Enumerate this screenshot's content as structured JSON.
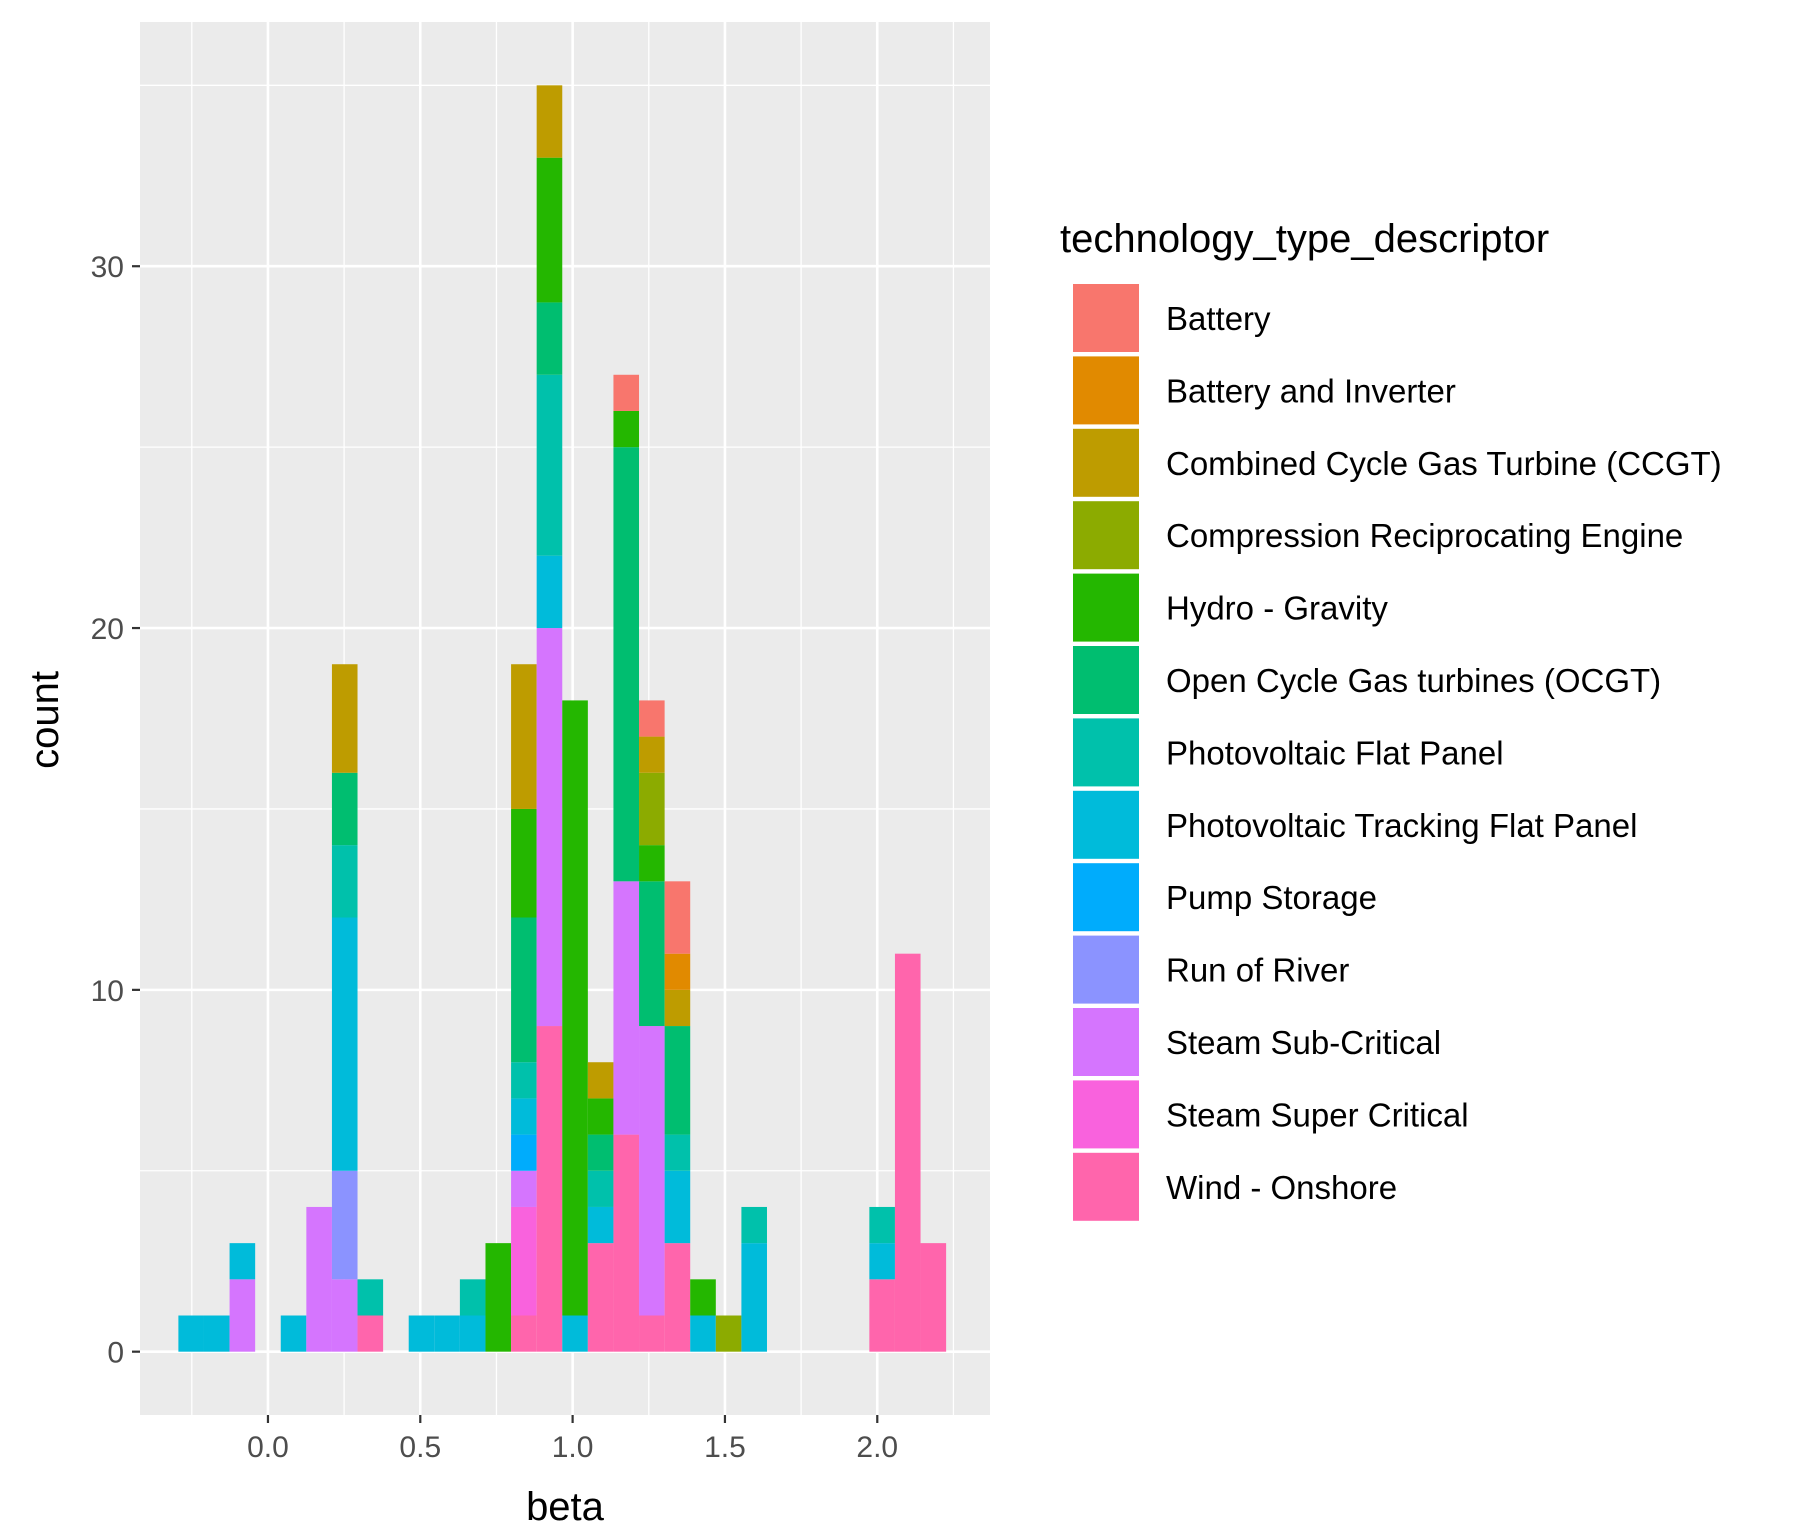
{
  "chart_data": {
    "type": "bar",
    "subtype": "stacked-histogram",
    "xlabel": "beta",
    "ylabel": "count",
    "xlim": [
      -0.42,
      2.37
    ],
    "ylim": [
      -1.75,
      36.75
    ],
    "bin_width": 0.084,
    "x_ticks": [
      0.0,
      0.5,
      1.0,
      1.5,
      2.0
    ],
    "x_tick_labels": [
      "0.0",
      "0.5",
      "1.0",
      "1.5",
      "2.0"
    ],
    "y_ticks": [
      0,
      10,
      20,
      30
    ],
    "y_tick_labels": [
      "0",
      "10",
      "20",
      "30"
    ],
    "grid": true,
    "legend": {
      "title": "technology_type_descriptor",
      "placement": "right",
      "entries": [
        {
          "name": "Battery",
          "color": "#F8766D"
        },
        {
          "name": "Battery and Inverter",
          "color": "#E18A00"
        },
        {
          "name": "Combined Cycle Gas Turbine (CCGT)",
          "color": "#BE9C00"
        },
        {
          "name": "Compression Reciprocating Engine",
          "color": "#8CAB00"
        },
        {
          "name": "Hydro - Gravity",
          "color": "#24B700"
        },
        {
          "name": "Open Cycle Gas turbines (OCGT)",
          "color": "#00BE70"
        },
        {
          "name": "Photovoltaic Flat Panel",
          "color": "#00C1AB"
        },
        {
          "name": "Photovoltaic Tracking  Flat Panel",
          "color": "#00BBDA"
        },
        {
          "name": "Pump Storage",
          "color": "#00ACFC"
        },
        {
          "name": "Run of River",
          "color": "#8B93FF"
        },
        {
          "name": "Steam Sub-Critical",
          "color": "#D575FE"
        },
        {
          "name": "Steam Super Critical",
          "color": "#F962DD"
        },
        {
          "name": "Wind - Onshore",
          "color": "#FF65AC"
        }
      ]
    },
    "bins": [
      {
        "x": -0.252,
        "counts": [
          0,
          0,
          0,
          0,
          0,
          0,
          0,
          1,
          0,
          0,
          0,
          0,
          0
        ]
      },
      {
        "x": -0.168,
        "counts": [
          0,
          0,
          0,
          0,
          0,
          0,
          0,
          1,
          0,
          0,
          0,
          0,
          0
        ]
      },
      {
        "x": -0.084,
        "counts": [
          0,
          0,
          0,
          0,
          0,
          0,
          0,
          1,
          0,
          0,
          2,
          0,
          0
        ]
      },
      {
        "x": 0.084,
        "counts": [
          0,
          0,
          0,
          0,
          0,
          0,
          0,
          1,
          0,
          0,
          0,
          0,
          0
        ]
      },
      {
        "x": 0.168,
        "counts": [
          0,
          0,
          0,
          0,
          0,
          0,
          0,
          0,
          0,
          0,
          4,
          0,
          0
        ]
      },
      {
        "x": 0.252,
        "counts": [
          0,
          0,
          3,
          0,
          0,
          2,
          2,
          7,
          0,
          3,
          2,
          0,
          0
        ]
      },
      {
        "x": 0.336,
        "counts": [
          0,
          0,
          0,
          0,
          0,
          0,
          1,
          0,
          0,
          0,
          0,
          0,
          1
        ]
      },
      {
        "x": 0.504,
        "counts": [
          0,
          0,
          0,
          0,
          0,
          0,
          0,
          1,
          0,
          0,
          0,
          0,
          0
        ]
      },
      {
        "x": 0.588,
        "counts": [
          0,
          0,
          0,
          0,
          0,
          0,
          0,
          1,
          0,
          0,
          0,
          0,
          0
        ]
      },
      {
        "x": 0.672,
        "counts": [
          0,
          0,
          0,
          0,
          0,
          0,
          1,
          1,
          0,
          0,
          0,
          0,
          0
        ]
      },
      {
        "x": 0.756,
        "counts": [
          0,
          0,
          0,
          0,
          3,
          0,
          0,
          0,
          0,
          0,
          0,
          0,
          0
        ]
      },
      {
        "x": 0.84,
        "counts": [
          0,
          0,
          4,
          0,
          3,
          4,
          1,
          1,
          1,
          0,
          1,
          3,
          1
        ]
      },
      {
        "x": 0.924,
        "counts": [
          0,
          0,
          2,
          0,
          4,
          2,
          5,
          2,
          0,
          0,
          11,
          0,
          9
        ]
      },
      {
        "x": 1.008,
        "counts": [
          0,
          0,
          0,
          0,
          17,
          0,
          0,
          1,
          0,
          0,
          0,
          0,
          0
        ]
      },
      {
        "x": 1.092,
        "counts": [
          0,
          0,
          1,
          0,
          1,
          1,
          1,
          1,
          0,
          0,
          0,
          0,
          3
        ]
      },
      {
        "x": 1.176,
        "counts": [
          1,
          0,
          0,
          0,
          1,
          12,
          0,
          0,
          0,
          0,
          7,
          0,
          6
        ]
      },
      {
        "x": 1.26,
        "counts": [
          1,
          0,
          1,
          2,
          1,
          4,
          0,
          0,
          0,
          0,
          8,
          0,
          1
        ]
      },
      {
        "x": 1.344,
        "counts": [
          2,
          1,
          1,
          0,
          0,
          3,
          1,
          2,
          0,
          0,
          0,
          0,
          3
        ]
      },
      {
        "x": 1.428,
        "counts": [
          0,
          0,
          0,
          0,
          1,
          0,
          0,
          1,
          0,
          0,
          0,
          0,
          0
        ]
      },
      {
        "x": 1.512,
        "counts": [
          0,
          0,
          0,
          1,
          0,
          0,
          0,
          0,
          0,
          0,
          0,
          0,
          0
        ]
      },
      {
        "x": 1.596,
        "counts": [
          0,
          0,
          0,
          0,
          0,
          0,
          1,
          3,
          0,
          0,
          0,
          0,
          0
        ]
      },
      {
        "x": 2.016,
        "counts": [
          0,
          0,
          0,
          0,
          0,
          0,
          1,
          1,
          0,
          0,
          0,
          0,
          2
        ]
      },
      {
        "x": 2.1,
        "counts": [
          0,
          0,
          0,
          0,
          0,
          0,
          0,
          0,
          0,
          0,
          0,
          0,
          11
        ]
      },
      {
        "x": 2.184,
        "counts": [
          0,
          0,
          0,
          0,
          0,
          0,
          0,
          0,
          0,
          0,
          0,
          0,
          3
        ]
      }
    ]
  }
}
